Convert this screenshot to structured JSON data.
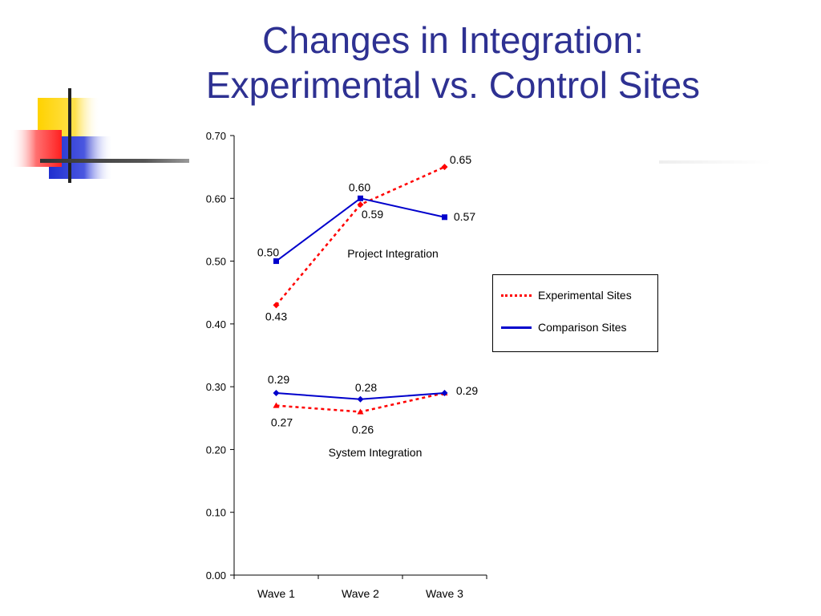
{
  "slide": {
    "title_line1": "Changes in Integration:",
    "title_line2": "Experimental vs. Control Sites"
  },
  "colors": {
    "title": "#2e3192",
    "experimental": "#ff0000",
    "comparison": "#0000cc",
    "deco_yellow": "#ffd700",
    "deco_red": "#ff3333",
    "deco_blue": "#2233cc"
  },
  "chart_data": {
    "type": "line",
    "title": "",
    "xlabel": "",
    "ylabel": "",
    "categories": [
      "Wave 1",
      "Wave 2",
      "Wave 3"
    ],
    "ylim": [
      0,
      0.7
    ],
    "yticks": [
      "0.00",
      "0.10",
      "0.20",
      "0.30",
      "0.40",
      "0.50",
      "0.60",
      "0.70"
    ],
    "grid": false,
    "legend": {
      "placement": "right",
      "entries": [
        {
          "label": "Experimental Sites",
          "style": "dotted",
          "color": "#ff0000"
        },
        {
          "label": "Comparison Sites",
          "style": "solid",
          "color": "#0000cc"
        }
      ]
    },
    "groups": [
      {
        "label": "Project Integration",
        "series": [
          {
            "group": "Experimental Sites",
            "values": [
              0.43,
              0.59,
              0.65
            ],
            "labels": [
              "0.43",
              "0.59",
              "0.65"
            ]
          },
          {
            "group": "Comparison Sites",
            "values": [
              0.5,
              0.6,
              0.57
            ],
            "labels": [
              "0.50",
              "0.60",
              "0.57"
            ]
          }
        ]
      },
      {
        "label": "System Integration",
        "series": [
          {
            "group": "Experimental Sites",
            "values": [
              0.27,
              0.26,
              0.29
            ],
            "labels": [
              "0.27",
              "0.26",
              ""
            ]
          },
          {
            "group": "Comparison Sites",
            "values": [
              0.29,
              0.28,
              0.29
            ],
            "labels": [
              "0.29",
              "0.28",
              "0.29"
            ]
          }
        ]
      }
    ]
  }
}
